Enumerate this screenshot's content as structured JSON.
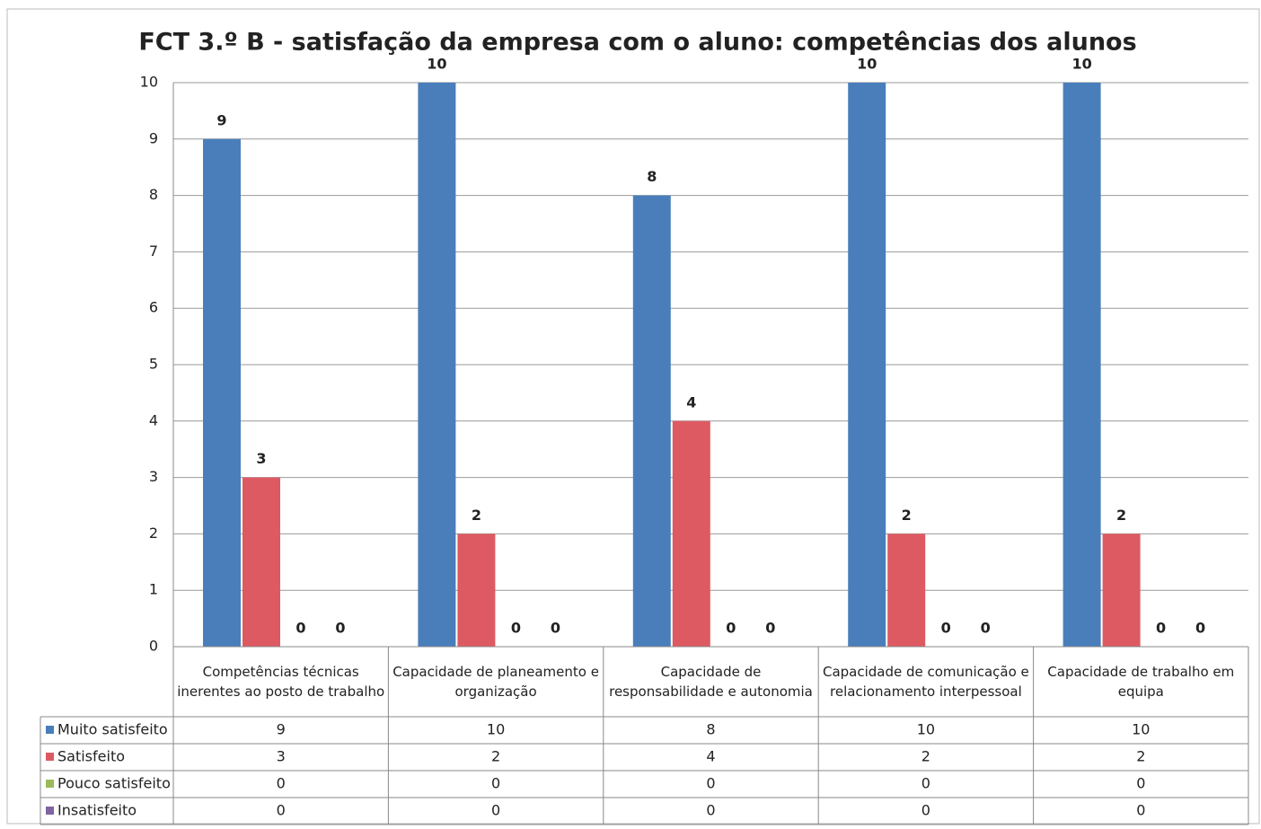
{
  "chart_data": {
    "type": "bar",
    "title": "FCT 3.º B - satisfação da empresa com o aluno: competências dos alunos",
    "categories": [
      "Competências técnicas inerentes ao posto de trabalho",
      "Capacidade de planeamento e organização",
      "Capacidade de responsabilidade e autonomia",
      "Capacidade de comunicação e relacionamento interpessoal",
      "Capacidade de trabalho em equipa"
    ],
    "series": [
      {
        "name": "Muito satisfeito",
        "color": "#4a7ebb",
        "values": [
          9,
          10,
          8,
          10,
          10
        ]
      },
      {
        "name": "Satisfeito",
        "color": "#de5a63",
        "values": [
          3,
          2,
          4,
          2,
          2
        ]
      },
      {
        "name": "Pouco satisfeito",
        "color": "#9bbb59",
        "values": [
          0,
          0,
          0,
          0,
          0
        ]
      },
      {
        "name": "Insatisfeito",
        "color": "#8064a2",
        "values": [
          0,
          0,
          0,
          0,
          0
        ]
      }
    ],
    "ylim": [
      0,
      10
    ],
    "yticks": [
      0,
      1,
      2,
      3,
      4,
      5,
      6,
      7,
      8,
      9,
      10
    ],
    "grid": true
  }
}
